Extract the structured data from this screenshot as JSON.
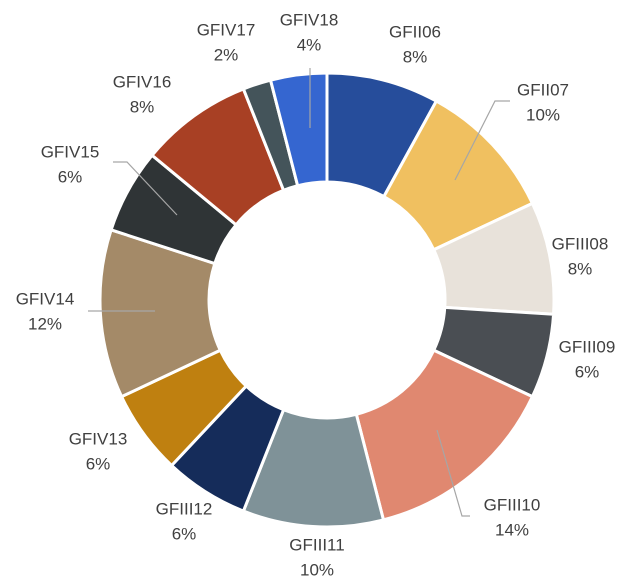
{
  "chart_data": {
    "type": "donut",
    "categories": [
      "GFII06",
      "GFII07",
      "GFIII08",
      "GFIII09",
      "GFIII10",
      "GFIII11",
      "GFIII12",
      "GFIV13",
      "GFIV14",
      "GFIV15",
      "GFIV16",
      "GFIV17",
      "GFIV18"
    ],
    "values": [
      8,
      10,
      8,
      6,
      14,
      10,
      6,
      6,
      12,
      6,
      8,
      2,
      4
    ],
    "value_labels": [
      "8%",
      "10%",
      "8%",
      "6%",
      "14%",
      "10%",
      "6%",
      "6%",
      "12%",
      "6%",
      "8%",
      "2%",
      "4%"
    ],
    "colors": [
      "#264d9b",
      "#f0c060",
      "#e8e2da",
      "#4a4e53",
      "#e08870",
      "#7f9298",
      "#152c5a",
      "#bf8010",
      "#a48a68",
      "#2f3436",
      "#a84024",
      "#44545a",
      "#3566d0"
    ]
  }
}
